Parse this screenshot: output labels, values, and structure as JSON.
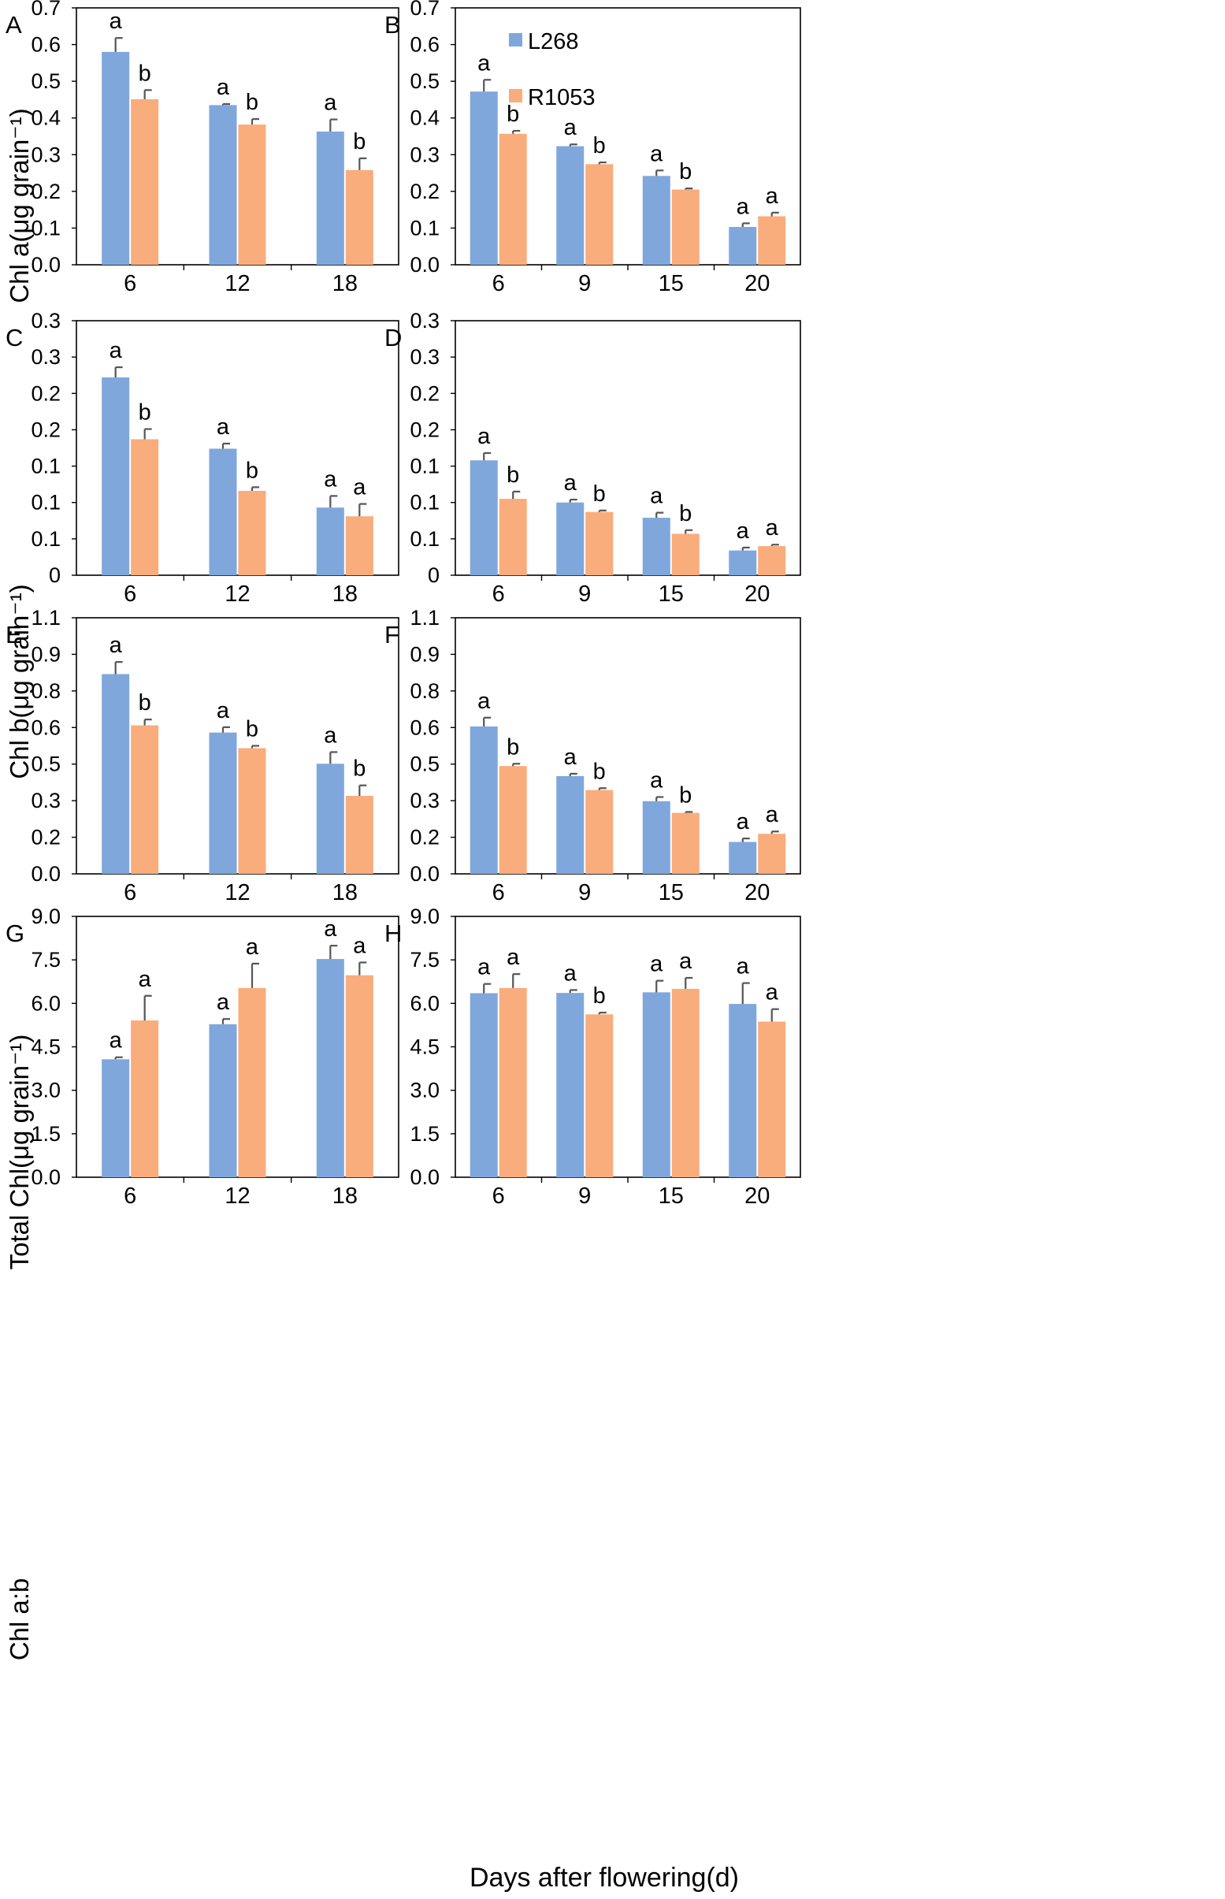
{
  "figure": {
    "xlabel": "Days after flowering(d)"
  },
  "legend": [
    {
      "label": "L268",
      "color": "#7fa7dc"
    },
    {
      "label": "R1053",
      "color": "#f9ac7c"
    }
  ],
  "colors": {
    "L268": "#7fa7dc",
    "R1053": "#f9ac7c",
    "error": "#555555"
  },
  "rows": [
    {
      "ylabel": "Chl a(μg grain⁻¹)"
    },
    {
      "ylabel": "Chl b(μg grain⁻¹)"
    },
    {
      "ylabel": "Total Chl(μg grain⁻¹)"
    },
    {
      "ylabel": "Chl a:b"
    }
  ],
  "chart_data": [
    {
      "panel": "A",
      "type": "bar",
      "categories": [
        "6",
        "12",
        "18"
      ],
      "ylim": [
        0,
        0.7
      ],
      "yticks": [
        "0.0",
        "0.1",
        "0.2",
        "0.3",
        "0.4",
        "0.5",
        "0.6",
        "0.7"
      ],
      "ylabel": "Chl a(μg grain⁻¹)",
      "xlabel": "",
      "series": [
        {
          "name": "L268",
          "values": [
            0.58,
            0.435,
            0.363
          ],
          "errors": [
            0.038,
            0.003,
            0.033
          ],
          "letters": [
            "a",
            "a",
            "a"
          ]
        },
        {
          "name": "R1053",
          "values": [
            0.451,
            0.382,
            0.258
          ],
          "errors": [
            0.025,
            0.015,
            0.032
          ],
          "letters": [
            "b",
            "b",
            "b"
          ]
        }
      ]
    },
    {
      "panel": "B",
      "type": "bar",
      "categories": [
        "6",
        "9",
        "15",
        "20"
      ],
      "ylim": [
        0,
        0.7
      ],
      "yticks": [
        "0.0",
        "0.1",
        "0.2",
        "0.3",
        "0.4",
        "0.5",
        "0.6",
        "0.7"
      ],
      "ylabel": "",
      "xlabel": "",
      "series": [
        {
          "name": "L268",
          "values": [
            0.472,
            0.323,
            0.242,
            0.103
          ],
          "errors": [
            0.032,
            0.005,
            0.015,
            0.01
          ],
          "letters": [
            "a",
            "a",
            "a",
            "a"
          ]
        },
        {
          "name": "R1053",
          "values": [
            0.357,
            0.274,
            0.205,
            0.132
          ],
          "errors": [
            0.008,
            0.005,
            0.003,
            0.01
          ],
          "letters": [
            "b",
            "b",
            "b",
            "a"
          ]
        }
      ]
    },
    {
      "panel": "C",
      "type": "bar",
      "categories": [
        "6",
        "12",
        "18"
      ],
      "ylim": [
        0,
        0.35
      ],
      "yticks": [
        "0",
        "0.1",
        "0.1",
        "0.1",
        "0.2",
        "0.2",
        "0.3",
        "0.3"
      ],
      "ylabel": "Chl b(μg grain⁻¹)",
      "xlabel": "",
      "series": [
        {
          "name": "L268",
          "values": [
            0.272,
            0.174,
            0.093
          ],
          "errors": [
            0.014,
            0.007,
            0.016
          ],
          "letters": [
            "a",
            "a",
            "a"
          ]
        },
        {
          "name": "R1053",
          "values": [
            0.187,
            0.116,
            0.081
          ],
          "errors": [
            0.014,
            0.005,
            0.017
          ],
          "letters": [
            "b",
            "b",
            "a"
          ]
        }
      ]
    },
    {
      "panel": "D",
      "type": "bar",
      "categories": [
        "6",
        "9",
        "15",
        "20"
      ],
      "ylim": [
        0,
        0.35
      ],
      "yticks": [
        "0",
        "0.1",
        "0.1",
        "0.1",
        "0.2",
        "0.2",
        "0.3",
        "0.3"
      ],
      "ylabel": "",
      "xlabel": "",
      "series": [
        {
          "name": "L268",
          "values": [
            0.158,
            0.1,
            0.079,
            0.034
          ],
          "errors": [
            0.01,
            0.004,
            0.007,
            0.004
          ],
          "letters": [
            "a",
            "a",
            "a",
            "a"
          ]
        },
        {
          "name": "R1053",
          "values": [
            0.105,
            0.087,
            0.057,
            0.04
          ],
          "errors": [
            0.01,
            0.002,
            0.005,
            0.002
          ],
          "letters": [
            "b",
            "b",
            "b",
            "a"
          ]
        }
      ]
    },
    {
      "panel": "E",
      "type": "bar",
      "categories": [
        "6",
        "12",
        "18"
      ],
      "ylim": [
        0,
        1.1
      ],
      "yticks": [
        "0.0",
        "0.2",
        "0.3",
        "0.5",
        "0.6",
        "0.8",
        "0.9",
        "1.1"
      ],
      "ylabel": "Total Chl(μg grain⁻¹)",
      "xlabel": "",
      "series": [
        {
          "name": "L268",
          "values": [
            0.858,
            0.607,
            0.473
          ],
          "errors": [
            0.052,
            0.023,
            0.05
          ],
          "letters": [
            "a",
            "a",
            "a"
          ]
        },
        {
          "name": "R1053",
          "values": [
            0.638,
            0.54,
            0.335
          ],
          "errors": [
            0.025,
            0.01,
            0.045
          ],
          "letters": [
            "b",
            "b",
            "b"
          ]
        }
      ]
    },
    {
      "panel": "F",
      "type": "bar",
      "categories": [
        "6",
        "9",
        "15",
        "20"
      ],
      "ylim": [
        0,
        1.1
      ],
      "yticks": [
        "0.0",
        "0.2",
        "0.3",
        "0.5",
        "0.6",
        "0.8",
        "0.9",
        "1.1"
      ],
      "ylabel": "",
      "xlabel": "",
      "series": [
        {
          "name": "L268",
          "values": [
            0.633,
            0.42,
            0.312,
            0.137
          ],
          "errors": [
            0.038,
            0.01,
            0.018,
            0.015
          ],
          "letters": [
            "a",
            "a",
            "a",
            "a"
          ]
        },
        {
          "name": "R1053",
          "values": [
            0.463,
            0.36,
            0.262,
            0.172
          ],
          "errors": [
            0.01,
            0.008,
            0.004,
            0.01
          ],
          "letters": [
            "b",
            "b",
            "b",
            "a"
          ]
        }
      ]
    },
    {
      "panel": "G",
      "type": "bar",
      "categories": [
        "6",
        "12",
        "18"
      ],
      "ylim": [
        0,
        9
      ],
      "yticks": [
        "0.0",
        "1.5",
        "3.0",
        "4.5",
        "6.0",
        "7.5",
        "9.0"
      ],
      "ylabel": "Chl a:b",
      "xlabel": "",
      "series": [
        {
          "name": "L268",
          "values": [
            4.07,
            5.28,
            7.53
          ],
          "errors": [
            0.07,
            0.18,
            0.46
          ],
          "letters": [
            "a",
            "a",
            "a"
          ]
        },
        {
          "name": "R1053",
          "values": [
            5.41,
            6.53,
            6.97
          ],
          "errors": [
            0.85,
            0.84,
            0.44
          ],
          "letters": [
            "a",
            "a",
            "a"
          ]
        }
      ]
    },
    {
      "panel": "H",
      "type": "bar",
      "categories": [
        "6",
        "9",
        "15",
        "20"
      ],
      "ylim": [
        0,
        9
      ],
      "yticks": [
        "0.0",
        "1.5",
        "3.0",
        "4.5",
        "6.0",
        "7.5",
        "9.0"
      ],
      "ylabel": "",
      "xlabel": "",
      "series": [
        {
          "name": "L268",
          "values": [
            6.35,
            6.36,
            6.38,
            5.98
          ],
          "errors": [
            0.32,
            0.1,
            0.4,
            0.72
          ],
          "letters": [
            "a",
            "a",
            "a",
            "a"
          ]
        },
        {
          "name": "R1053",
          "values": [
            6.53,
            5.62,
            6.5,
            5.37
          ],
          "errors": [
            0.48,
            0.06,
            0.38,
            0.43
          ],
          "letters": [
            "a",
            "b",
            "a",
            "a"
          ]
        }
      ]
    }
  ]
}
